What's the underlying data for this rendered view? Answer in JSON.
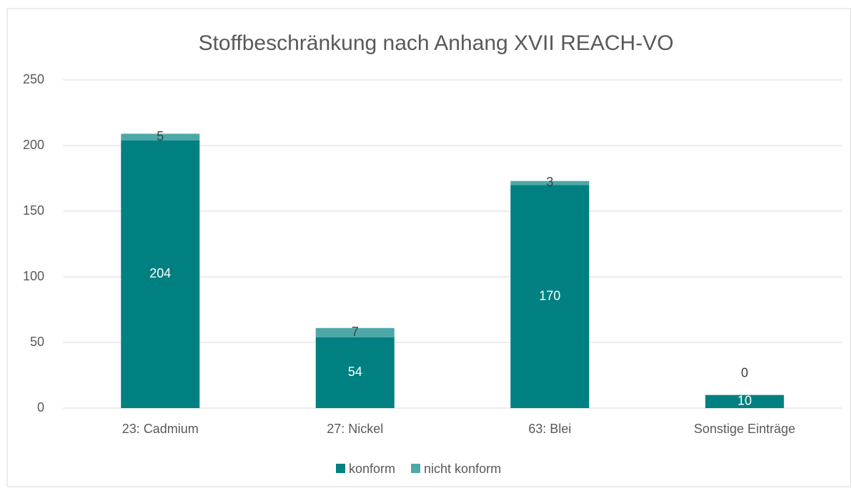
{
  "chart_data": {
    "type": "stacked_bar",
    "title": "Stoffbeschränkung nach Anhang XVII REACH-VO",
    "categories": [
      "23: Cadmium",
      "27: Nickel",
      "63: Blei",
      "Sonstige Einträge"
    ],
    "series": [
      {
        "name": "konform",
        "color": "#008080",
        "values": [
          204,
          54,
          170,
          10
        ]
      },
      {
        "name": "nicht konform",
        "color": "#4ea8a8",
        "values": [
          5,
          7,
          3,
          0
        ]
      }
    ],
    "ylim": [
      0,
      250
    ],
    "yticks": [
      0,
      50,
      100,
      150,
      200,
      250
    ],
    "grid": true,
    "legend": "bottom"
  }
}
